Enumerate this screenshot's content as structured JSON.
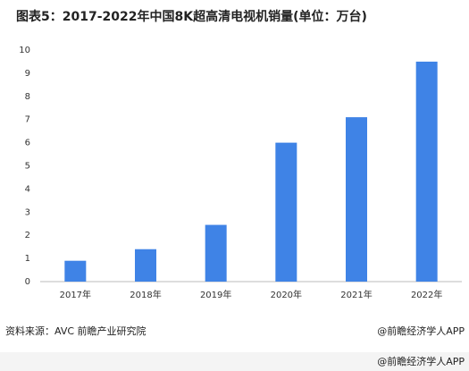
{
  "chart_data": {
    "type": "bar",
    "title": "图表5：2017-2022年中国8K超高清电视机销量(单位：万台)",
    "categories": [
      "2017年",
      "2018年",
      "2019年",
      "2020年",
      "2021年",
      "2022年"
    ],
    "values": [
      0.9,
      1.4,
      2.45,
      6.0,
      7.1,
      9.5
    ],
    "color": "#3f83e6",
    "ylim": [
      0,
      10
    ],
    "yticks": [
      0,
      1,
      2,
      3,
      4,
      5,
      6,
      7,
      8,
      9,
      10
    ],
    "grid": false,
    "source": "资料来源：AVC 前瞻产业研究院",
    "credit": "@前瞻经济学人APP",
    "footer_credit": "@前瞻经济学人APP"
  }
}
